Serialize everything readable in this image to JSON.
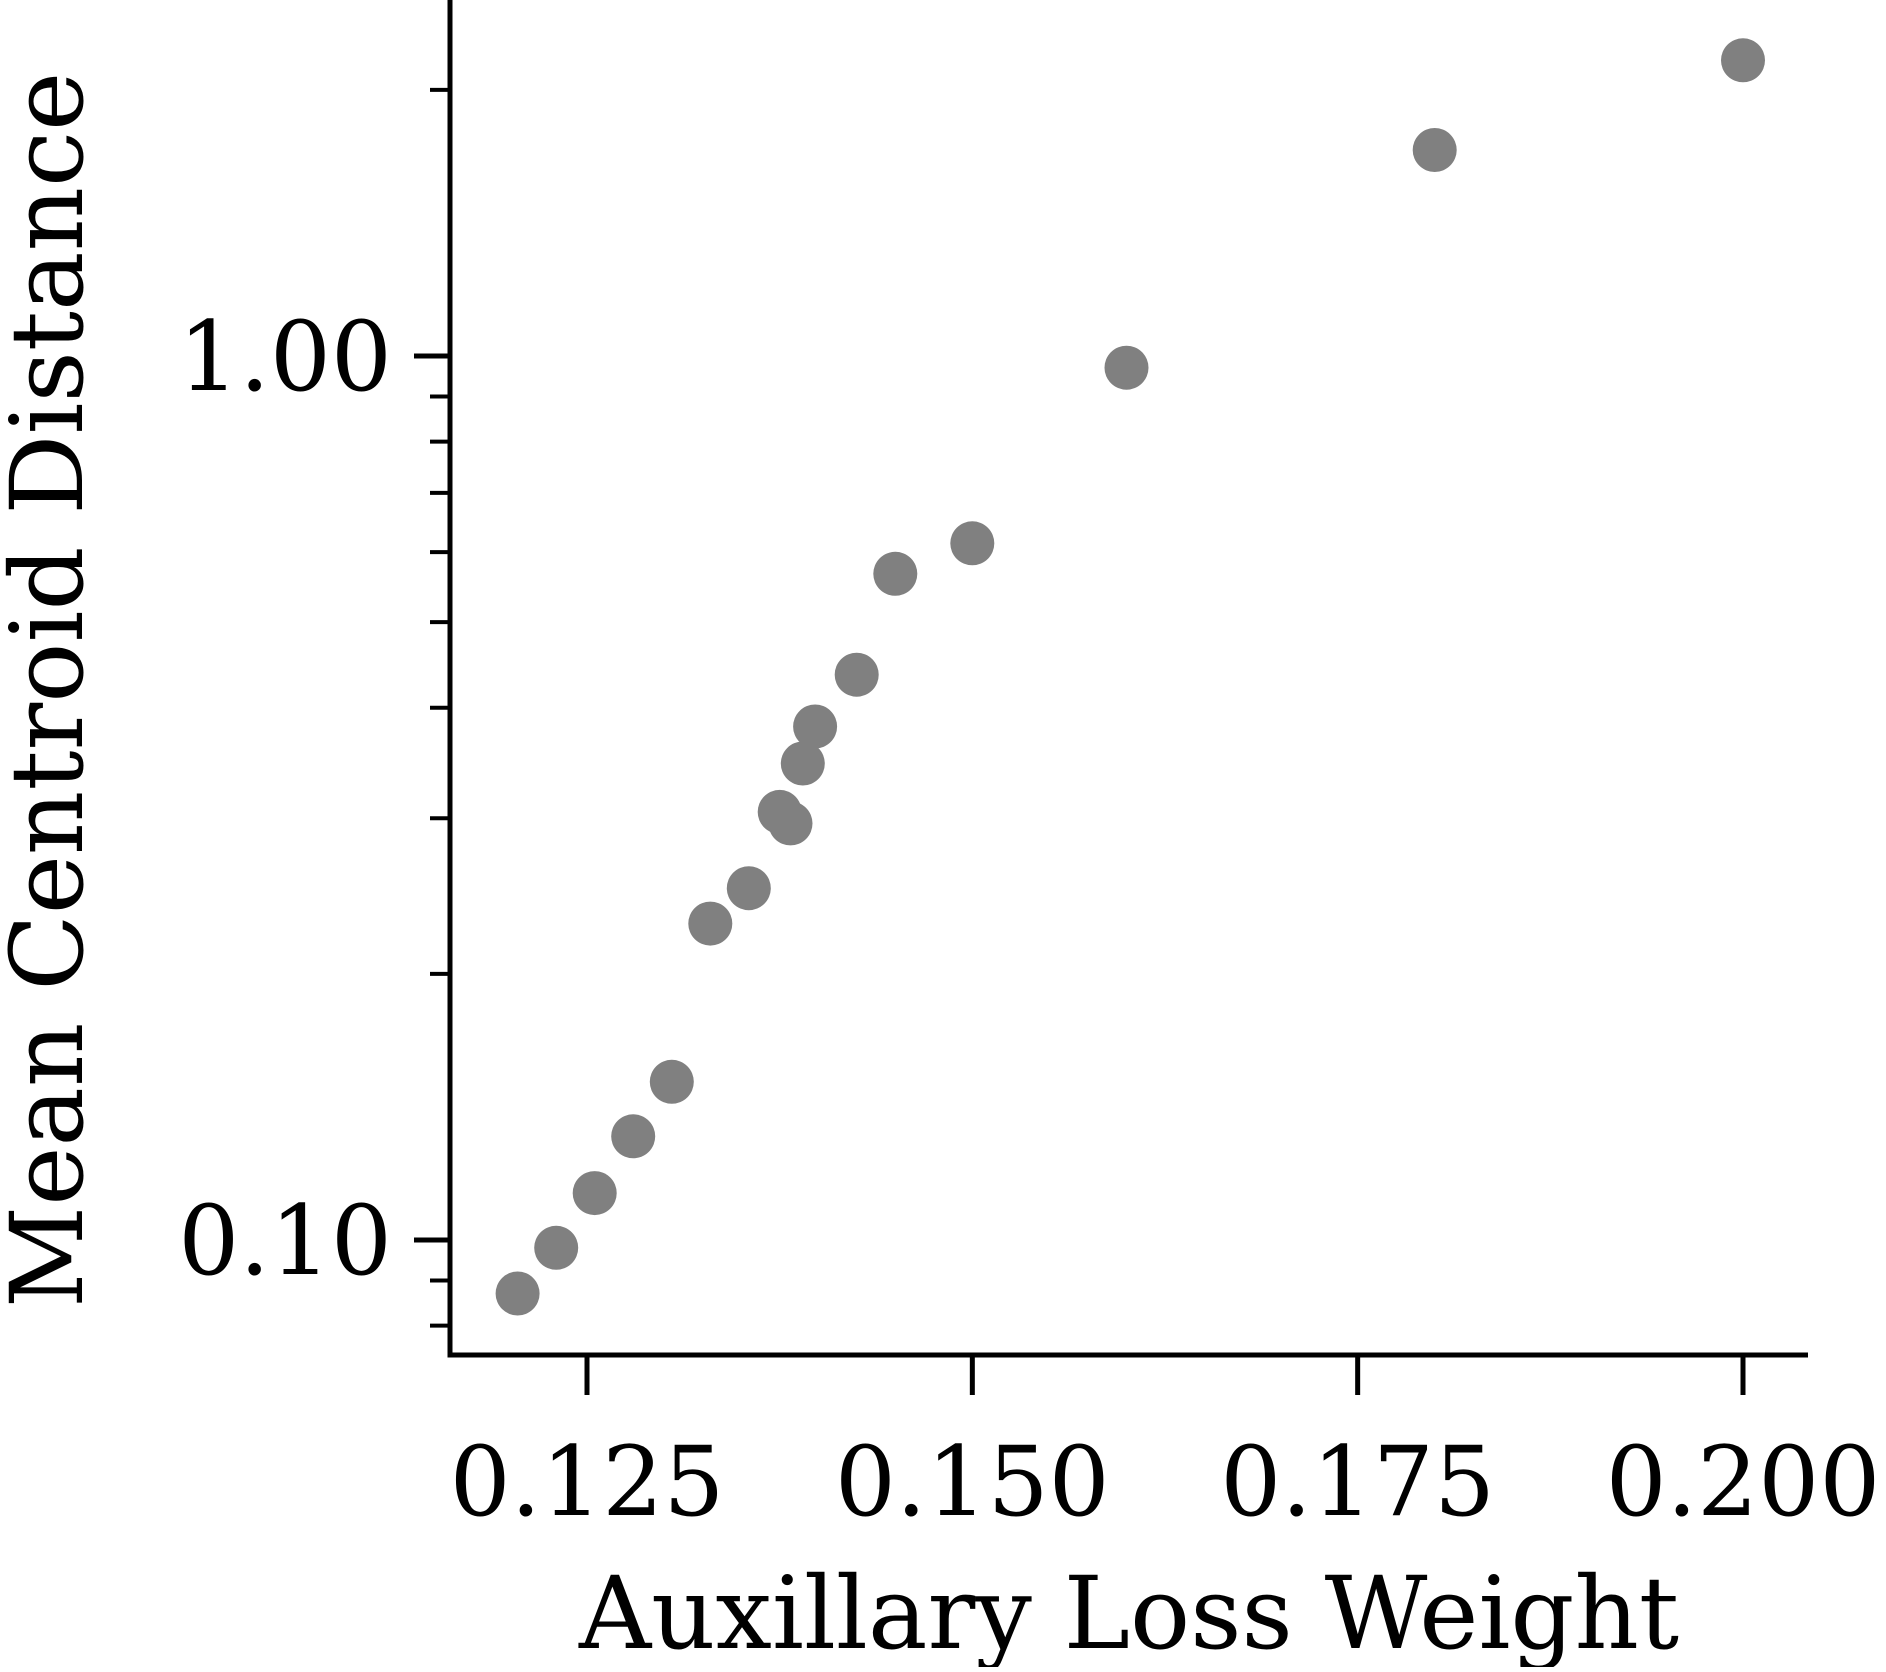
{
  "chart_data": {
    "type": "scatter",
    "title": "",
    "xlabel": "Auxillary Loss Weight",
    "ylabel": "Mean Centroid Distance",
    "x_ticks": [
      0.125,
      0.15,
      0.175,
      0.2
    ],
    "x_tick_labels": [
      "0.125",
      "0.150",
      "0.175",
      "0.200"
    ],
    "y_scale": "log",
    "y_ticks": [
      0.1,
      1.0
    ],
    "y_tick_labels": [
      "0.10",
      "1.00"
    ],
    "xlim": [
      0.116,
      0.204
    ],
    "ylim": [
      0.075,
      2.4
    ],
    "grid": false,
    "legend": "none",
    "marker_color": "#808080",
    "axis_color": "#000000",
    "series": [
      {
        "x": [
          0.1205,
          0.123,
          0.1255,
          0.128,
          0.1305,
          0.133,
          0.1355,
          0.1375,
          0.1382,
          0.139,
          0.1398,
          0.1425,
          0.145,
          0.15,
          0.16,
          0.18,
          0.2
        ],
        "y": [
          0.087,
          0.098,
          0.113,
          0.131,
          0.151,
          0.228,
          0.25,
          0.305,
          0.296,
          0.346,
          0.381,
          0.436,
          0.567,
          0.614,
          0.97,
          1.71,
          2.16
        ]
      }
    ]
  }
}
